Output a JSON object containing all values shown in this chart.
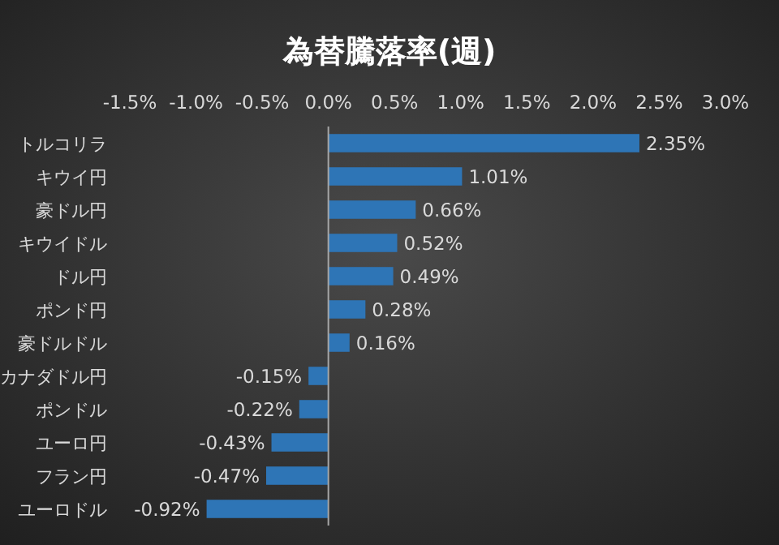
{
  "chart_data": {
    "type": "bar",
    "orientation": "horizontal",
    "title": "為替騰落率(週)",
    "categories": [
      "トルコリラ",
      "キウイ円",
      "豪ドル円",
      "キウイドル",
      "ドル円",
      "ポンド円",
      "豪ドルドル",
      "カナダドル円",
      "ポンドル",
      "ユーロ円",
      "フラン円",
      "ユーロドル"
    ],
    "values": [
      2.35,
      1.01,
      0.66,
      0.52,
      0.49,
      0.28,
      0.16,
      -0.15,
      -0.22,
      -0.43,
      -0.47,
      -0.92
    ],
    "value_labels": [
      "2.35%",
      "1.01%",
      "0.66%",
      "0.52%",
      "0.49%",
      "0.28%",
      "0.16%",
      "-0.15%",
      "-0.22%",
      "-0.43%",
      "-0.47%",
      "-0.92%"
    ],
    "color": "#2e75b6",
    "xlim": [
      -1.5,
      3.0
    ],
    "xticks": [
      {
        "value": -1.5,
        "label": "-1.5%"
      },
      {
        "value": -1.0,
        "label": "-1.0%"
      },
      {
        "value": -0.5,
        "label": "-0.5%"
      },
      {
        "value": 0,
        "label": "0.0%"
      },
      {
        "value": 0.5,
        "label": "0.5%"
      },
      {
        "value": 1.0,
        "label": "1.0%"
      },
      {
        "value": 1.5,
        "label": "1.5%"
      },
      {
        "value": 2.0,
        "label": "2.0%"
      },
      {
        "value": 2.5,
        "label": "2.5%"
      },
      {
        "value": 3.0,
        "label": "3.0%"
      }
    ]
  }
}
